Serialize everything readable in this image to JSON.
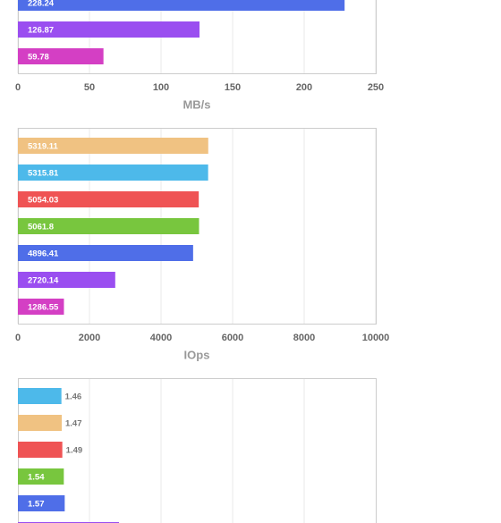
{
  "chart_data": [
    {
      "type": "barh",
      "x_label": "MB/s",
      "xlim": [
        0,
        250
      ],
      "xticks": [
        0,
        50,
        100,
        150,
        200,
        250
      ],
      "grid": true,
      "values": [
        228.24,
        126.87,
        59.78
      ],
      "colors": [
        "#4f6ee8",
        "#9a4ef0",
        "#d43fc4"
      ]
    },
    {
      "type": "barh",
      "x_label": "IOps",
      "xlim": [
        0,
        10000
      ],
      "xticks": [
        0,
        2000,
        4000,
        6000,
        8000,
        10000
      ],
      "grid": true,
      "values": [
        5319.11,
        5315.81,
        5054.03,
        5061.8,
        4896.41,
        2720.14,
        1286.55
      ],
      "colors": [
        "#f0c282",
        "#4db9ea",
        "#ef5354",
        "#78c63e",
        "#4f6ee8",
        "#9a4ef0",
        "#d43fc4"
      ]
    },
    {
      "type": "barh",
      "xlim": [
        0,
        12
      ],
      "grid": true,
      "values": [
        1.46,
        1.47,
        1.49,
        1.54,
        1.57,
        3.39
      ],
      "colors": [
        "#4db9ea",
        "#f0c282",
        "#ef5354",
        "#78c63e",
        "#4f6ee8",
        "#9a4ef0"
      ]
    }
  ]
}
